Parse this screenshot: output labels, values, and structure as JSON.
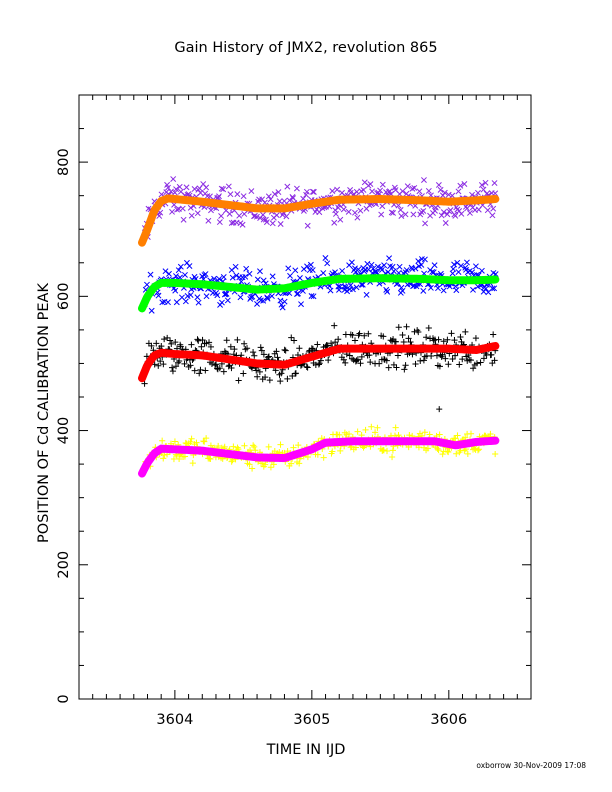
{
  "chart_data": {
    "type": "scatter",
    "title": "Gain History of JMX2, revolution 865",
    "xlabel": "TIME IN IJD",
    "ylabel": "POSITION OF Cd CALIBRATION PEAK",
    "xlim": [
      3603.3,
      3606.6
    ],
    "ylim": [
      0,
      900
    ],
    "x_ticks": [
      3604,
      3605,
      3606
    ],
    "y_ticks": [
      0,
      200,
      400,
      600,
      800
    ],
    "x_minor_step": 0.1,
    "y_minor_step": 50,
    "grid": false,
    "legend": "none",
    "footer": "oxborrow 30-Nov-2009 17:08",
    "series": [
      {
        "marker": "x",
        "color": "#8a2be2",
        "x_range": [
          3603.78,
          3606.34
        ],
        "noise": 22,
        "trend": {
          "color": "#ff7f00",
          "x": [
            3603.76,
            3603.8,
            3603.85,
            3603.9,
            3603.95,
            3604.0,
            3604.2,
            3604.4,
            3604.6,
            3604.8,
            3605.0,
            3605.2,
            3605.5,
            3605.8,
            3606.0,
            3606.2,
            3606.34
          ],
          "y": [
            680,
            700,
            728,
            742,
            746,
            745,
            741,
            736,
            731,
            731,
            738,
            744,
            745,
            743,
            741,
            743,
            745
          ]
        }
      },
      {
        "marker": "x",
        "color": "#0000ff",
        "x_range": [
          3603.78,
          3606.34
        ],
        "noise": 22,
        "trend": {
          "color": "#00ff00",
          "x": [
            3603.76,
            3603.8,
            3603.85,
            3603.9,
            3604.0,
            3604.2,
            3604.4,
            3604.6,
            3604.8,
            3605.0,
            3605.2,
            3605.5,
            3605.8,
            3606.0,
            3606.2,
            3606.34
          ],
          "y": [
            582,
            600,
            614,
            620,
            620,
            618,
            614,
            610,
            612,
            620,
            626,
            627,
            626,
            624,
            624,
            625
          ]
        }
      },
      {
        "marker": "+",
        "color": "#000000",
        "x_range": [
          3603.78,
          3606.34
        ],
        "noise": 24,
        "trend": {
          "color": "#ff0000",
          "x": [
            3603.76,
            3603.8,
            3603.85,
            3603.9,
            3604.0,
            3604.2,
            3604.4,
            3604.6,
            3604.8,
            3605.0,
            3605.2,
            3605.5,
            3605.8,
            3606.0,
            3606.2,
            3606.34
          ],
          "y": [
            478,
            498,
            512,
            516,
            514,
            512,
            506,
            500,
            498,
            510,
            522,
            522,
            522,
            522,
            520,
            526
          ]
        }
      },
      {
        "marker": "+",
        "color": "#ffff00",
        "x_range": [
          3603.78,
          3606.34
        ],
        "noise": 15,
        "trend": {
          "color": "#ff00ff",
          "x": [
            3603.76,
            3603.8,
            3603.85,
            3603.9,
            3604.0,
            3604.2,
            3604.4,
            3604.6,
            3604.8,
            3605.0,
            3605.1,
            3605.3,
            3605.6,
            3605.9,
            3606.05,
            3606.2,
            3606.34
          ],
          "y": [
            336,
            352,
            366,
            373,
            372,
            370,
            365,
            360,
            359,
            372,
            382,
            384,
            384,
            384,
            378,
            383,
            385
          ]
        }
      }
    ],
    "outliers": [
      {
        "x": 3605.93,
        "y": 432,
        "marker": "+",
        "color": "#000000"
      }
    ]
  }
}
